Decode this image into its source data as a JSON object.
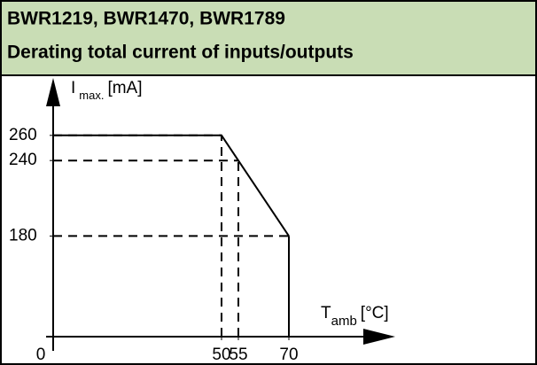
{
  "chart_data": {
    "type": "line",
    "title": "BWR1219, BWR1470, BWR1789",
    "subtitle": "Derating total current of inputs/outputs",
    "y_label": {
      "symbol": "I",
      "subscript": "max.",
      "unit": "[mA]"
    },
    "x_label": {
      "symbol": "T",
      "subscript": "amb",
      "unit": "[°C]"
    },
    "x": [
      0,
      50,
      70
    ],
    "series": [
      {
        "color": "#000000",
        "values": [
          260,
          260,
          180
        ]
      }
    ],
    "guides": [
      {
        "x": 50,
        "y": 260
      },
      {
        "x": 55,
        "y": 240
      },
      {
        "x": 70,
        "y": 180
      }
    ],
    "xlim": [
      0,
      100
    ],
    "ylim": [
      100,
      300
    ],
    "xticks": [
      0,
      50,
      55,
      70
    ],
    "yticks": [
      180,
      240,
      260
    ]
  }
}
